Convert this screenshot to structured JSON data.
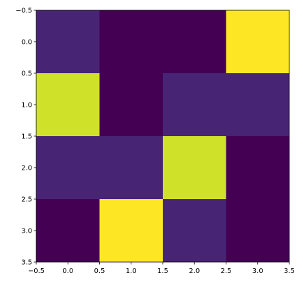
{
  "chart_data": {
    "type": "heatmap",
    "cmap": "viridis",
    "z": [
      [
        1,
        0,
        0,
        10
      ],
      [
        9.3,
        0,
        1,
        1
      ],
      [
        1,
        1,
        9.3,
        0
      ],
      [
        0,
        10,
        1,
        0
      ]
    ],
    "xlim": [
      -0.5,
      3.5
    ],
    "ylim": [
      3.5,
      -0.5
    ],
    "xticks": [
      {
        "value": -0.5,
        "label": "−0.5"
      },
      {
        "value": 0,
        "label": "0.0"
      },
      {
        "value": 0.5,
        "label": "0.5"
      },
      {
        "value": 1,
        "label": "1.0"
      },
      {
        "value": 1.5,
        "label": "1.5"
      },
      {
        "value": 2,
        "label": "2.0"
      },
      {
        "value": 2.5,
        "label": "2.5"
      },
      {
        "value": 3,
        "label": "3.0"
      },
      {
        "value": 3.5,
        "label": "3.5"
      }
    ],
    "yticks": [
      {
        "value": -0.5,
        "label": "−0.5"
      },
      {
        "value": 0,
        "label": "0.0"
      },
      {
        "value": 0.5,
        "label": "0.5"
      },
      {
        "value": 1,
        "label": "1.0"
      },
      {
        "value": 1.5,
        "label": "1.5"
      },
      {
        "value": 2,
        "label": "2.0"
      },
      {
        "value": 2.5,
        "label": "2.5"
      },
      {
        "value": 3,
        "label": "3.0"
      },
      {
        "value": 3.5,
        "label": "3.5"
      }
    ]
  }
}
